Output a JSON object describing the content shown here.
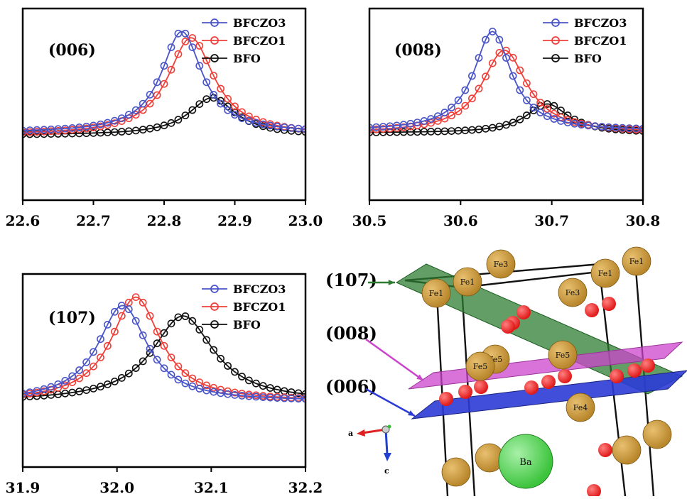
{
  "colors": {
    "BFCZO3": "#4a55c8",
    "BFCZO1": "#f0403a",
    "BFO": "#111111",
    "plane_107": "#2e7d32",
    "plane_008": "#cc44cc",
    "plane_006": "#2b3bd6",
    "fe_atom": "#b8862b",
    "o_atom": "#e01818",
    "ba_atom": "#3cc43c"
  },
  "chart_data": [
    {
      "type": "line",
      "panel": "006",
      "annotation": "(006)",
      "xlim": [
        22.6,
        23.0
      ],
      "xticks": [
        "22.6",
        "22.7",
        "22.8",
        "22.9",
        "23.0"
      ],
      "legend": [
        "BFCZO3",
        "BFCZO1",
        "BFO"
      ],
      "legend_position": "top-right",
      "grid": false,
      "series": [
        {
          "name": "BFCZO3",
          "peak_x": 22.825,
          "peak_y": 100,
          "width": 0.035,
          "baseline": 2,
          "step": 0.01,
          "x_start": 22.6,
          "x_end": 23.0
        },
        {
          "name": "BFCZO1",
          "peak_x": 22.838,
          "peak_y": 94,
          "width": 0.04,
          "baseline": 0,
          "step": 0.01,
          "x_start": 22.6,
          "x_end": 23.0
        },
        {
          "name": "BFO",
          "peak_x": 22.868,
          "peak_y": 36,
          "width": 0.04,
          "baseline": 0,
          "step": 0.01,
          "x_start": 22.6,
          "x_end": 23.0
        }
      ]
    },
    {
      "type": "line",
      "panel": "008",
      "annotation": "(008)",
      "xlim": [
        30.5,
        30.8
      ],
      "xticks": [
        "30.5",
        "30.6",
        "30.7",
        "30.8"
      ],
      "legend": [
        "BFCZO3",
        "BFCZO1",
        "BFO"
      ],
      "legend_position": "top-right",
      "grid": false,
      "series": [
        {
          "name": "BFCZO3",
          "peak_x": 30.635,
          "peak_y": 100,
          "width": 0.025,
          "baseline": 4,
          "step": 0.0075,
          "x_start": 30.5,
          "x_end": 30.8
        },
        {
          "name": "BFCZO1",
          "peak_x": 30.648,
          "peak_y": 82,
          "width": 0.03,
          "baseline": 2,
          "step": 0.0075,
          "x_start": 30.5,
          "x_end": 30.8
        },
        {
          "name": "BFO",
          "peak_x": 30.695,
          "peak_y": 30,
          "width": 0.028,
          "baseline": 2,
          "step": 0.0075,
          "x_start": 30.5,
          "x_end": 30.8
        }
      ]
    },
    {
      "type": "line",
      "panel": "107",
      "annotation": "(107)",
      "xlim": [
        31.9,
        32.2
      ],
      "xticks": [
        "31.9",
        "32.0",
        "32.1",
        "32.2"
      ],
      "legend": [
        "BFCZO3",
        "BFCZO1",
        "BFO"
      ],
      "legend_position": "top-right",
      "grid": false,
      "series": [
        {
          "name": "BFCZO3",
          "peak_x": 32.006,
          "peak_y": 92,
          "width": 0.032,
          "baseline": 0,
          "step": 0.0075,
          "x_start": 31.9,
          "x_end": 32.2
        },
        {
          "name": "BFCZO1",
          "peak_x": 32.02,
          "peak_y": 100,
          "width": 0.032,
          "baseline": 0,
          "step": 0.0075,
          "x_start": 31.9,
          "x_end": 32.2
        },
        {
          "name": "BFO",
          "peak_x": 32.07,
          "peak_y": 82,
          "width": 0.04,
          "baseline": 0,
          "step": 0.0075,
          "x_start": 31.9,
          "x_end": 32.2
        }
      ]
    }
  ],
  "structure": {
    "plane_labels": [
      "(107)",
      "(008)",
      "(006)"
    ],
    "atoms": {
      "fe_labels": [
        "Fe3",
        "Fe1",
        "Fe1",
        "Fe1",
        "Fe3",
        "Fe1",
        "Fe5",
        "Fe5",
        "Fe5",
        "Fe4"
      ],
      "ba_label": "Ba"
    },
    "axes": {
      "a": "a",
      "c": "c"
    }
  }
}
